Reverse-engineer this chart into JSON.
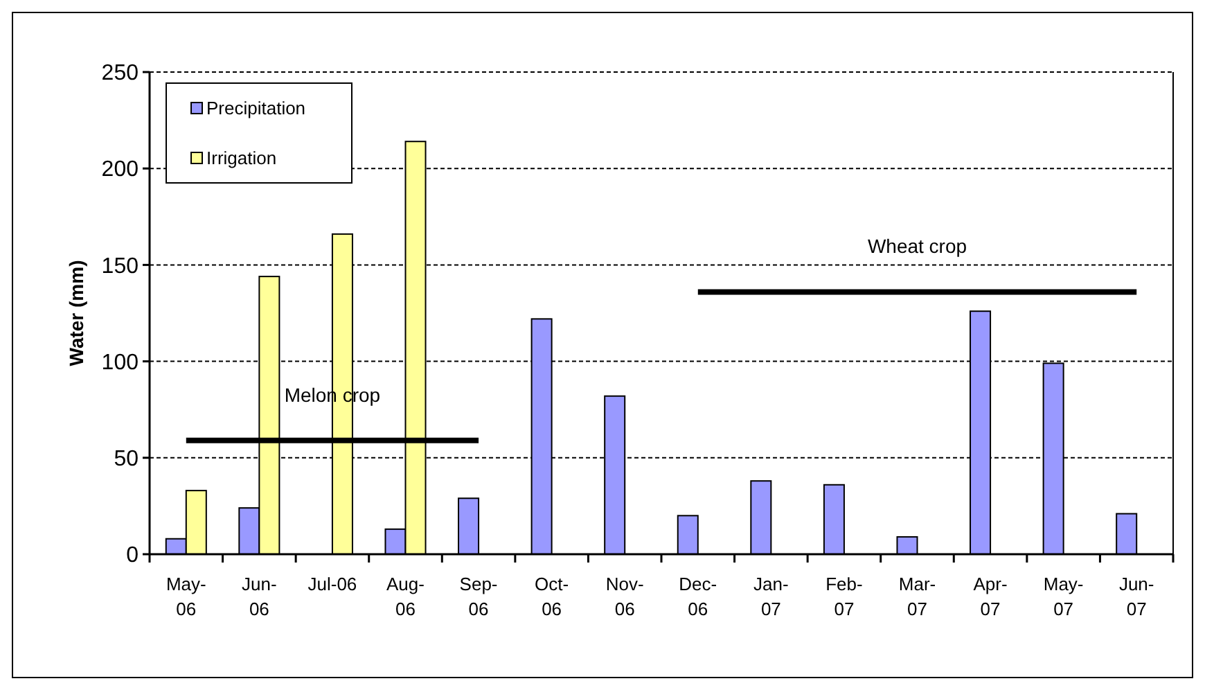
{
  "chart_data": {
    "type": "bar",
    "ylabel": "Water (mm)",
    "categories": [
      "May-06",
      "Jun-06",
      "Jul-06",
      "Aug-06",
      "Sep-06",
      "Oct-06",
      "Nov-06",
      "Dec-06",
      "Jan-07",
      "Feb-07",
      "Mar-07",
      "Apr-07",
      "May-07",
      "Jun-07"
    ],
    "series": [
      {
        "name": "Precipitation",
        "color": "#9999ff",
        "values": [
          8,
          24,
          null,
          13,
          29,
          122,
          82,
          20,
          38,
          36,
          9,
          126,
          99,
          21
        ]
      },
      {
        "name": "Irrigation",
        "color": "#ffff99",
        "values": [
          33,
          144,
          166,
          214,
          null,
          null,
          null,
          null,
          null,
          null,
          null,
          null,
          null,
          null
        ]
      },
      {
        "type": "line",
        "color": "#000000",
        "values": [
          59,
          59,
          59,
          59,
          59,
          null,
          null,
          null,
          null,
          null,
          null,
          null,
          null,
          null
        ]
      },
      {
        "type": "line",
        "color": "#000000",
        "values": [
          null,
          null,
          null,
          null,
          null,
          null,
          null,
          136,
          136,
          136,
          136,
          136,
          136,
          136
        ]
      }
    ],
    "annotations": [
      {
        "text": "Melon crop",
        "x": "Jul-06",
        "y": 59
      },
      {
        "text": "Wheat crop",
        "x": "Mar-07",
        "y": 136
      }
    ],
    "ylim": [
      0,
      250
    ],
    "yticks": [
      0,
      50,
      100,
      150,
      200,
      250
    ],
    "grid": "y",
    "legend": "top left"
  }
}
